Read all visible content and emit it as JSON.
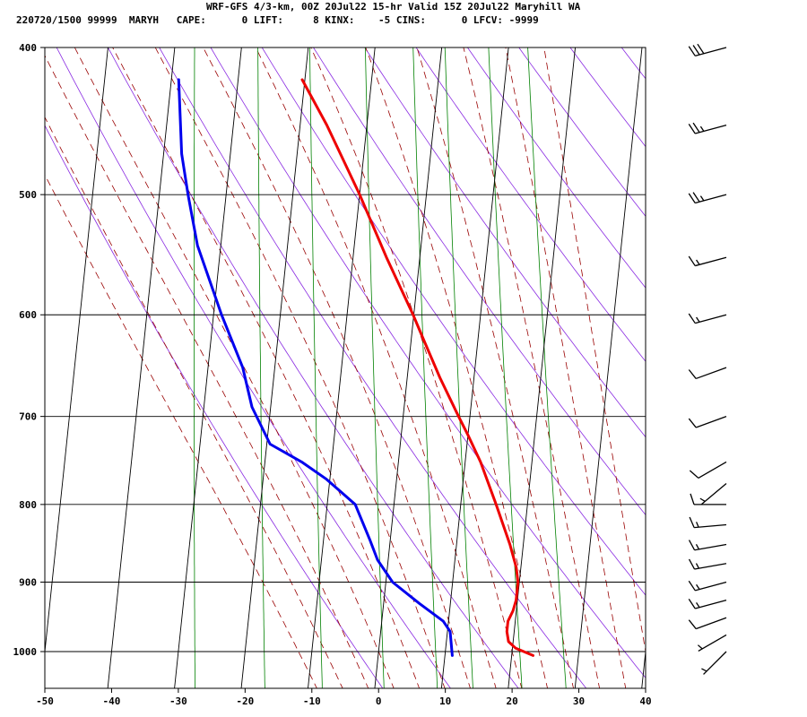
{
  "header": {
    "line1": "WRF-GFS 4/3-km, 00Z 20Jul22 15-hr Valid 15Z 20Jul22 Maryhill WA",
    "line2": "220720/1500 99999  MARYH   CAPE:      0 LIFT:     8 KINX:    -5 CINS:      0 LFCV: -9999"
  },
  "chart_data": {
    "type": "line",
    "title": "WRF-GFS 4/3-km, 00Z 20Jul22 15-hr Valid 15Z 20Jul22 Maryhill WA",
    "diagram": "skew-T log-P",
    "xlim": [
      -50,
      40
    ],
    "ylim_hpa": [
      1050,
      400
    ],
    "y_scale": "log (inverted)",
    "x_ticks": [
      -50,
      -40,
      -30,
      -20,
      -10,
      0,
      10,
      20,
      30,
      40
    ],
    "y_ticks": [
      400,
      500,
      600,
      700,
      800,
      900,
      1000
    ],
    "x_tick_labels": [
      "-50",
      "-40",
      "-30",
      "-20",
      "-10",
      "0",
      "10",
      "20",
      "30",
      "40"
    ],
    "y_tick_labels": [
      "400",
      "500",
      "600",
      "700",
      "800",
      "900",
      "1000"
    ],
    "grid": true,
    "series": [
      {
        "color": "#ee0000",
        "points": [
          {
            "p": 1006,
            "t": 23.2
          },
          {
            "p": 995,
            "t": 20.5
          },
          {
            "p": 985,
            "t": 19.3
          },
          {
            "p": 970,
            "t": 18.9
          },
          {
            "p": 955,
            "t": 18.9
          },
          {
            "p": 940,
            "t": 19.5
          },
          {
            "p": 925,
            "t": 19.8
          },
          {
            "p": 900,
            "t": 19.8
          },
          {
            "p": 880,
            "t": 19.3
          },
          {
            "p": 850,
            "t": 18.0
          },
          {
            "p": 800,
            "t": 15.3
          },
          {
            "p": 750,
            "t": 12.3
          },
          {
            "p": 720,
            "t": 10.0
          },
          {
            "p": 700,
            "t": 8.3
          },
          {
            "p": 660,
            "t": 4.9
          },
          {
            "p": 620,
            "t": 1.6
          },
          {
            "p": 600,
            "t": -0.1
          },
          {
            "p": 550,
            "t": -5.0
          },
          {
            "p": 500,
            "t": -10.0
          },
          {
            "p": 450,
            "t": -16.0
          },
          {
            "p": 420,
            "t": -20.4
          }
        ]
      },
      {
        "color": "#0000ee",
        "points": [
          {
            "p": 1006,
            "t": 11.1
          },
          {
            "p": 970,
            "t": 10.4
          },
          {
            "p": 955,
            "t": 9.2
          },
          {
            "p": 930,
            "t": 5.4
          },
          {
            "p": 900,
            "t": 1.0
          },
          {
            "p": 870,
            "t": -1.6
          },
          {
            "p": 845,
            "t": -3.0
          },
          {
            "p": 800,
            "t": -5.8
          },
          {
            "p": 770,
            "t": -10.5
          },
          {
            "p": 750,
            "t": -14.5
          },
          {
            "p": 730,
            "t": -19.5
          },
          {
            "p": 690,
            "t": -22.8
          },
          {
            "p": 650,
            "t": -24.8
          },
          {
            "p": 600,
            "t": -28.8
          },
          {
            "p": 540,
            "t": -33.5
          },
          {
            "p": 500,
            "t": -35.7
          },
          {
            "p": 470,
            "t": -37.3
          },
          {
            "p": 420,
            "t": -38.9
          }
        ]
      }
    ],
    "wind_barbs": [
      {
        "p": 1000,
        "dir": 225,
        "speed_kt": 5
      },
      {
        "p": 975,
        "dir": 240,
        "speed_kt": 5
      },
      {
        "p": 950,
        "dir": 250,
        "speed_kt": 10
      },
      {
        "p": 925,
        "dir": 255,
        "speed_kt": 15
      },
      {
        "p": 900,
        "dir": 255,
        "speed_kt": 15
      },
      {
        "p": 875,
        "dir": 260,
        "speed_kt": 15
      },
      {
        "p": 850,
        "dir": 260,
        "speed_kt": 15
      },
      {
        "p": 825,
        "dir": 265,
        "speed_kt": 15
      },
      {
        "p": 800,
        "dir": 270,
        "speed_kt": 10
      },
      {
        "p": 775,
        "dir": 230,
        "speed_kt": 5
      },
      {
        "p": 750,
        "dir": 240,
        "speed_kt": 10
      },
      {
        "p": 700,
        "dir": 250,
        "speed_kt": 10
      },
      {
        "p": 650,
        "dir": 250,
        "speed_kt": 10
      },
      {
        "p": 600,
        "dir": 255,
        "speed_kt": 15
      },
      {
        "p": 550,
        "dir": 255,
        "speed_kt": 15
      },
      {
        "p": 500,
        "dir": 255,
        "speed_kt": 25
      },
      {
        "p": 450,
        "dir": 255,
        "speed_kt": 25
      },
      {
        "p": 400,
        "dir": 255,
        "speed_kt": 30
      }
    ],
    "background_lines": {
      "dry_adiabat_color": "#8a2be2",
      "moist_adiabat_color": "#990000",
      "mixing_ratio_color": "#008000",
      "isobar_color": "#000000",
      "isotherm_color": "#000000"
    }
  }
}
